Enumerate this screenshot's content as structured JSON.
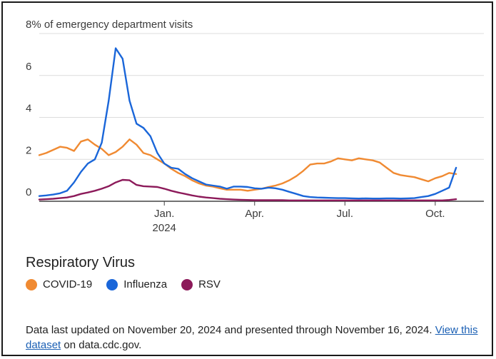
{
  "chart_data": {
    "type": "line",
    "ylabel": "8% of emergency department visits",
    "ylim": [
      0,
      8
    ],
    "y_ticks": [
      "8% of emergency department visits",
      "6",
      "4",
      "2",
      "0"
    ],
    "y_tick_values": [
      8,
      6,
      4,
      2,
      0
    ],
    "x_ticks": [
      {
        "label": "Jan.",
        "sublabel": "2024",
        "x": 18
      },
      {
        "label": "Apr.",
        "sublabel": "",
        "x": 31
      },
      {
        "label": "Jul.",
        "sublabel": "",
        "x": 44
      },
      {
        "label": "Oct.",
        "sublabel": "",
        "x": 57
      }
    ],
    "xlim": [
      0,
      64
    ],
    "grid": true,
    "legend_title": "Respiratory Virus",
    "series": [
      {
        "name": "COVID-19",
        "color": "#f08a32",
        "values": [
          2.2,
          2.3,
          2.45,
          2.6,
          2.55,
          2.4,
          2.85,
          2.95,
          2.7,
          2.5,
          2.2,
          2.35,
          2.6,
          2.95,
          2.7,
          2.3,
          2.2,
          2.0,
          1.8,
          1.55,
          1.35,
          1.2,
          1.0,
          0.85,
          0.75,
          0.7,
          0.62,
          0.55,
          0.55,
          0.55,
          0.5,
          0.55,
          0.6,
          0.68,
          0.75,
          0.85,
          1.0,
          1.2,
          1.45,
          1.75,
          1.8,
          1.8,
          1.9,
          2.05,
          2.0,
          1.95,
          2.05,
          2.0,
          1.95,
          1.85,
          1.6,
          1.35,
          1.25,
          1.2,
          1.15,
          1.05,
          0.95,
          1.1,
          1.2,
          1.35,
          1.3
        ]
      },
      {
        "name": "Influenza",
        "color": "#1a66d9",
        "values": [
          0.25,
          0.28,
          0.32,
          0.38,
          0.5,
          0.9,
          1.4,
          1.8,
          2.0,
          2.8,
          4.8,
          7.3,
          6.8,
          4.8,
          3.7,
          3.5,
          3.1,
          2.3,
          1.8,
          1.6,
          1.55,
          1.3,
          1.1,
          0.95,
          0.8,
          0.75,
          0.7,
          0.6,
          0.7,
          0.7,
          0.68,
          0.62,
          0.6,
          0.65,
          0.62,
          0.55,
          0.45,
          0.35,
          0.25,
          0.2,
          0.18,
          0.17,
          0.16,
          0.15,
          0.15,
          0.14,
          0.13,
          0.14,
          0.13,
          0.13,
          0.14,
          0.14,
          0.13,
          0.14,
          0.15,
          0.2,
          0.25,
          0.35,
          0.5,
          0.65,
          1.6
        ]
      },
      {
        "name": "RSV",
        "color": "#8c1a5a",
        "values": [
          0.08,
          0.1,
          0.12,
          0.15,
          0.18,
          0.25,
          0.35,
          0.42,
          0.5,
          0.6,
          0.72,
          0.9,
          1.02,
          1.0,
          0.78,
          0.72,
          0.7,
          0.68,
          0.6,
          0.5,
          0.42,
          0.35,
          0.28,
          0.22,
          0.18,
          0.15,
          0.12,
          0.1,
          0.08,
          0.07,
          0.06,
          0.05,
          0.05,
          0.05,
          0.05,
          0.05,
          0.04,
          0.04,
          0.04,
          0.04,
          0.04,
          0.04,
          0.04,
          0.04,
          0.04,
          0.04,
          0.04,
          0.04,
          0.04,
          0.04,
          0.04,
          0.04,
          0.04,
          0.04,
          0.04,
          0.04,
          0.04,
          0.04,
          0.04,
          0.06,
          0.1
        ]
      }
    ]
  },
  "footer": {
    "text_before": "Data last updated on November 20, 2024 and presented through November 16, 2024. ",
    "link_text": "View this dataset",
    "text_after": " on data.cdc.gov."
  }
}
